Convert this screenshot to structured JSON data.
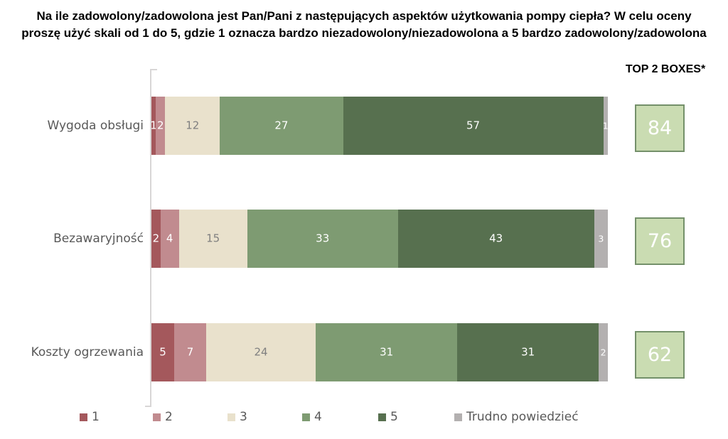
{
  "title": {
    "line1": "Na ile zadowolony/zadowolona jest Pan/Pani z następujących aspektów użytkowania pompy ciepła? W celu oceny",
    "line2": "proszę użyć skali od 1 do 5, gdzie 1 oznacza bardzo niezadowolony/niezadowolona a 5 bardzo zadowolony/zadowolona"
  },
  "top2": {
    "header": "TOP 2 BOXES*"
  },
  "chart_data": {
    "type": "bar",
    "orientation": "horizontal",
    "stacked": true,
    "title": "Na ile zadowolony/zadowolona jest Pan/Pani z następujących aspektów użytkowania pompy ciepła? W celu oceny proszę użyć skali od 1 do 5, gdzie 1 oznacza bardzo niezadowolony/niezadowolona a 5 bardzo zadowolony/zadowolona",
    "categories": [
      "Wygoda obsługi",
      "Bezawaryjność",
      "Koszty ogrzewania"
    ],
    "series": [
      {
        "name": "1",
        "color": "#A4585C",
        "values": [
          1,
          2,
          5
        ]
      },
      {
        "name": "2",
        "color": "#C18B8F",
        "values": [
          2,
          4,
          7
        ]
      },
      {
        "name": "3",
        "color": "#E9E1CC",
        "values": [
          12,
          15,
          24
        ]
      },
      {
        "name": "4",
        "color": "#7E9B72",
        "values": [
          27,
          33,
          31
        ]
      },
      {
        "name": "5",
        "color": "#57704F",
        "values": [
          57,
          43,
          31
        ]
      },
      {
        "name": "Trudno powiedzieć",
        "color": "#B3B0B0",
        "values": [
          1,
          3,
          2
        ]
      }
    ],
    "top2_boxes": {
      "header": "TOP 2 BOXES*",
      "values": [
        84,
        76,
        62
      ],
      "fill": "#CADCB2",
      "border": "#74906A"
    },
    "xlim": [
      0,
      100
    ],
    "value_labels": "inside",
    "legend_position": "bottom",
    "grid": false
  },
  "colors": {
    "axis": "#D8D6D6",
    "category_label": "#595959",
    "value_label_light": "#FFFFFF",
    "value_label_on_beige": "#7F7F7F",
    "legend_text": "#595959",
    "title_text": "#000000"
  }
}
